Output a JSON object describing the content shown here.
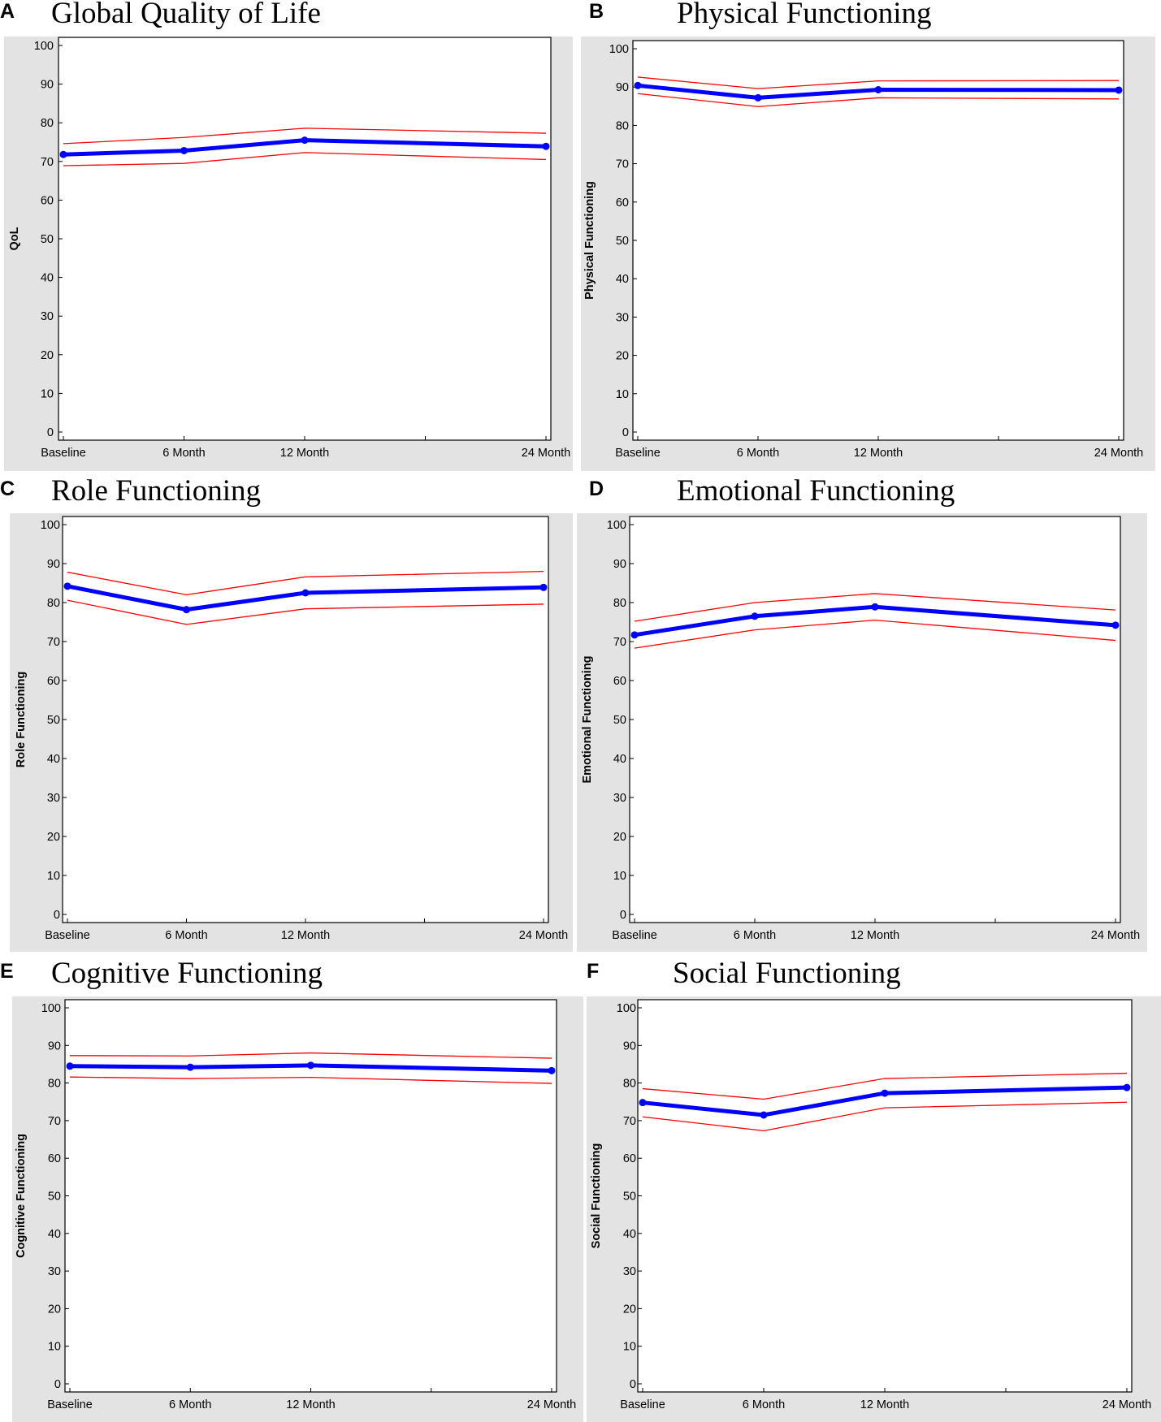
{
  "colors": {
    "mean_line": "#0000ff",
    "ci_line": "#ff0000",
    "panel_bg": "#e3e3e3",
    "plot_bg": "#ffffff"
  },
  "chart_data": [
    {
      "panel": "A",
      "type": "line",
      "title": "Global Quality of Life",
      "ylabel": "QoL",
      "xlabel": "",
      "x_ticks": [
        0,
        6,
        12,
        18,
        24
      ],
      "x": [
        0,
        6,
        12,
        24
      ],
      "categories": [
        "Baseline",
        "6 Month",
        "12 Month",
        "24 Month"
      ],
      "ylim": [
        0,
        100
      ],
      "yticks": [
        0,
        10,
        20,
        30,
        40,
        50,
        60,
        70,
        80,
        90,
        100
      ],
      "series": [
        {
          "values": [
            71.8,
            72.8,
            75.5,
            73.9
          ]
        },
        {
          "values": [
            74.6,
            76.2,
            78.6,
            77.3
          ]
        },
        {
          "values": [
            68.9,
            69.5,
            72.3,
            70.5
          ]
        }
      ]
    },
    {
      "panel": "B",
      "type": "line",
      "title": "Physical Functioning",
      "ylabel": "Physical Functioning",
      "xlabel": "",
      "x_ticks": [
        0,
        6,
        12,
        18,
        24
      ],
      "x": [
        0,
        6,
        12,
        24
      ],
      "categories": [
        "Baseline",
        "6 Month",
        "12 Month",
        "24 Month"
      ],
      "ylim": [
        0,
        100
      ],
      "yticks": [
        0,
        10,
        20,
        30,
        40,
        50,
        60,
        70,
        80,
        90,
        100
      ],
      "series": [
        {
          "values": [
            90.4,
            87.2,
            89.3,
            89.2
          ]
        },
        {
          "values": [
            92.6,
            89.6,
            91.6,
            91.7
          ]
        },
        {
          "values": [
            88.3,
            84.9,
            87.2,
            86.9
          ]
        }
      ]
    },
    {
      "panel": "C",
      "type": "line",
      "title": "Role Functioning",
      "ylabel": "Role Functioning",
      "xlabel": "",
      "x_ticks": [
        0,
        6,
        12,
        18,
        24
      ],
      "x": [
        0,
        6,
        12,
        24
      ],
      "categories": [
        "Baseline",
        "6 Month",
        "12 Month",
        "24 Month"
      ],
      "ylim": [
        0,
        100
      ],
      "yticks": [
        0,
        10,
        20,
        30,
        40,
        50,
        60,
        70,
        80,
        90,
        100
      ],
      "series": [
        {
          "values": [
            84.2,
            78.2,
            82.5,
            83.9
          ]
        },
        {
          "values": [
            87.8,
            82.0,
            86.6,
            88.0
          ]
        },
        {
          "values": [
            80.6,
            74.4,
            78.4,
            79.6
          ]
        }
      ]
    },
    {
      "panel": "D",
      "type": "line",
      "title": "Emotional Functioning",
      "ylabel": "Emotional Functioning",
      "xlabel": "",
      "x_ticks": [
        0,
        6,
        12,
        18,
        24
      ],
      "x": [
        0,
        6,
        12,
        24
      ],
      "categories": [
        "Baseline",
        "6 Month",
        "12 Month",
        "24 Month"
      ],
      "ylim": [
        0,
        100
      ],
      "yticks": [
        0,
        10,
        20,
        30,
        40,
        50,
        60,
        70,
        80,
        90,
        100
      ],
      "series": [
        {
          "values": [
            71.7,
            76.5,
            78.9,
            74.2
          ]
        },
        {
          "values": [
            75.2,
            80.0,
            82.3,
            78.1
          ]
        },
        {
          "values": [
            68.3,
            73.0,
            75.5,
            70.3
          ]
        }
      ]
    },
    {
      "panel": "E",
      "type": "line",
      "title": "Cognitive Functioning",
      "ylabel": "Cognitive Functioning",
      "xlabel": "",
      "x_ticks": [
        0,
        6,
        12,
        18,
        24
      ],
      "x": [
        0,
        6,
        12,
        24
      ],
      "categories": [
        "Baseline",
        "6 Month",
        "12 Month",
        "24 Month"
      ],
      "ylim": [
        0,
        100
      ],
      "yticks": [
        0,
        10,
        20,
        30,
        40,
        50,
        60,
        70,
        80,
        90,
        100
      ],
      "series": [
        {
          "values": [
            84.5,
            84.2,
            84.7,
            83.3
          ]
        },
        {
          "values": [
            87.3,
            87.2,
            88.0,
            86.6
          ]
        },
        {
          "values": [
            81.6,
            81.2,
            81.5,
            79.9
          ]
        }
      ]
    },
    {
      "panel": "F",
      "type": "line",
      "title": "Social Functioning",
      "ylabel": "Social Functioning",
      "xlabel": "",
      "x_ticks": [
        0,
        6,
        12,
        18,
        24
      ],
      "x": [
        0,
        6,
        12,
        24
      ],
      "categories": [
        "Baseline",
        "6 Month",
        "12 Month",
        "24 Month"
      ],
      "ylim": [
        0,
        100
      ],
      "yticks": [
        0,
        10,
        20,
        30,
        40,
        50,
        60,
        70,
        80,
        90,
        100
      ],
      "series": [
        {
          "values": [
            74.8,
            71.5,
            77.3,
            78.8
          ]
        },
        {
          "values": [
            78.5,
            75.7,
            81.2,
            82.6
          ]
        },
        {
          "values": [
            71.0,
            67.3,
            73.4,
            74.9
          ]
        }
      ]
    }
  ]
}
